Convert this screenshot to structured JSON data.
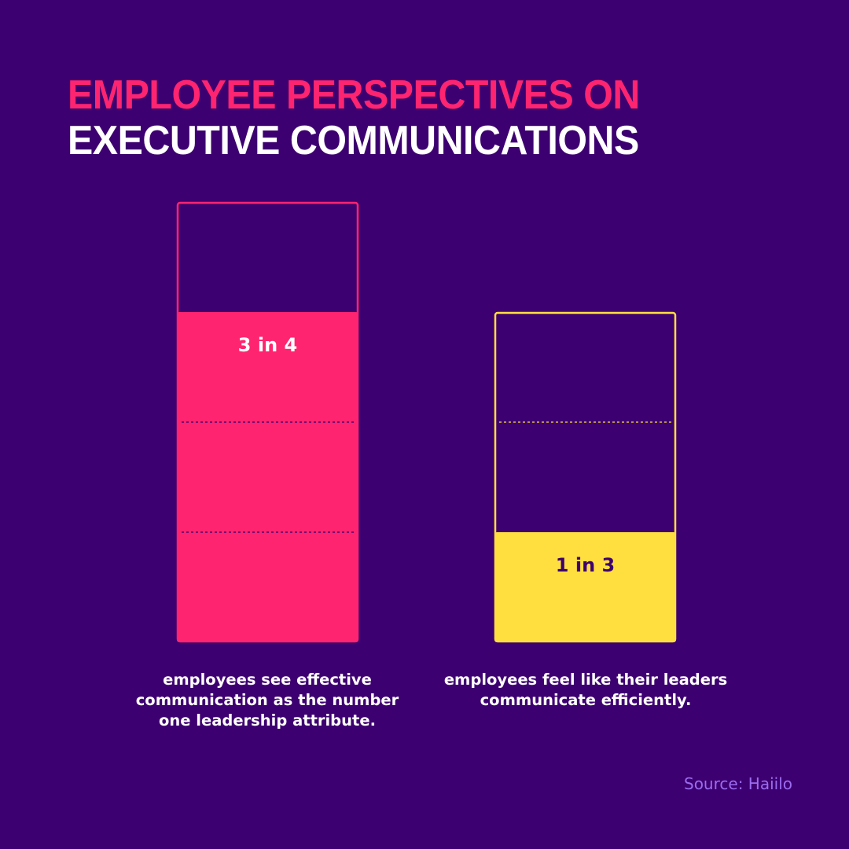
{
  "title": {
    "line1": "EMPLOYEE PERSPECTIVES ON",
    "line2": "EXECUTIVE COMMUNICATIONS"
  },
  "colors": {
    "background": "#3d0070",
    "accent_pink": "#ff2470",
    "accent_yellow": "#ffdf40",
    "dark_text": "#3d0070",
    "source_text": "#9b6cf0"
  },
  "chart_data": {
    "type": "bar",
    "ylim": [
      0,
      1
    ],
    "bars": [
      {
        "label": "3 in 4",
        "value": 0.75,
        "segments": 4,
        "color": "#ff2470",
        "label_color": "#ffffff",
        "caption": "employees see effective communication as the number one leadership attribute."
      },
      {
        "label": "1 in 3",
        "value": 0.3333,
        "segments": 3,
        "color": "#ffdf40",
        "label_color": "#3d0070",
        "caption": "employees feel like their leaders communicate efficiently."
      }
    ]
  },
  "source": "Source: Haiilo"
}
